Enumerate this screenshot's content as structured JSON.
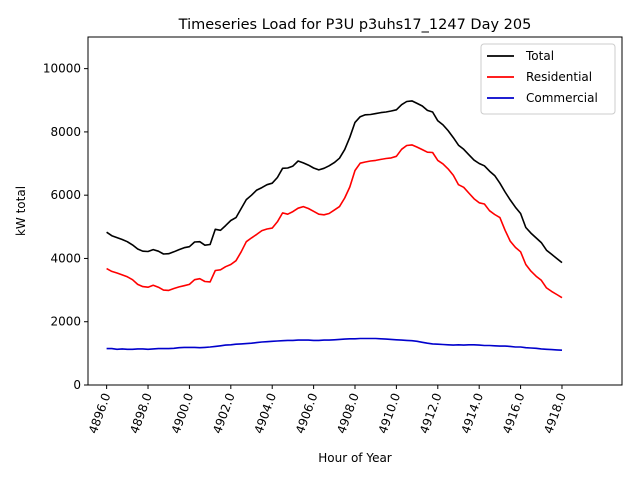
{
  "chart_data": {
    "type": "line",
    "title": "Timeseries Load for P3U p3uhs17_1247  Day 205",
    "xlabel": "Hour of Year",
    "ylabel": "kW total",
    "xlim": [
      4895.1,
      4920.9
    ],
    "ylim": [
      0,
      11000
    ],
    "x_start": 4896.0,
    "x_step": 0.25,
    "xticks": [
      4896,
      4898,
      4900,
      4902,
      4904,
      4906,
      4908,
      4910,
      4912,
      4914,
      4916,
      4918
    ],
    "xtick_labels": [
      "4896.0",
      "4898.0",
      "4900.0",
      "4902.0",
      "4904.0",
      "4906.0",
      "4908.0",
      "4910.0",
      "4912.0",
      "4914.0",
      "4916.0",
      "4918.0"
    ],
    "yticks": [
      0,
      2000,
      4000,
      6000,
      8000,
      10000
    ],
    "ytick_labels": [
      "0",
      "2000",
      "4000",
      "6000",
      "8000",
      "10000"
    ],
    "legend_position": "top-right",
    "series": [
      {
        "name": "Total",
        "color": "#000000",
        "values": [
          4830,
          4720,
          4660,
          4600,
          4530,
          4430,
          4300,
          4230,
          4220,
          4280,
          4230,
          4140,
          4150,
          4210,
          4280,
          4340,
          4370,
          4520,
          4530,
          4420,
          4440,
          4920,
          4890,
          5040,
          5200,
          5290,
          5580,
          5860,
          6000,
          6160,
          6240,
          6330,
          6380,
          6560,
          6850,
          6860,
          6920,
          7080,
          7020,
          6950,
          6860,
          6800,
          6850,
          6930,
          7030,
          7170,
          7440,
          7830,
          8300,
          8480,
          8540,
          8550,
          8580,
          8610,
          8630,
          8660,
          8700,
          8860,
          8960,
          8980,
          8900,
          8820,
          8680,
          8630,
          8350,
          8220,
          8040,
          7820,
          7580,
          7450,
          7280,
          7110,
          7000,
          6930,
          6760,
          6620,
          6380,
          6100,
          5850,
          5620,
          5420,
          4980,
          4800,
          4650,
          4500,
          4260,
          4130,
          4000,
          3870
        ]
      },
      {
        "name": "Residential",
        "color": "#ff0000",
        "values": [
          3680,
          3590,
          3540,
          3480,
          3420,
          3330,
          3180,
          3110,
          3090,
          3150,
          3090,
          3000,
          2990,
          3050,
          3100,
          3140,
          3180,
          3330,
          3360,
          3270,
          3260,
          3620,
          3640,
          3740,
          3810,
          3930,
          4210,
          4530,
          4650,
          4760,
          4880,
          4930,
          4960,
          5160,
          5440,
          5400,
          5480,
          5590,
          5640,
          5580,
          5490,
          5400,
          5380,
          5420,
          5530,
          5640,
          5910,
          6260,
          6780,
          7010,
          7050,
          7080,
          7100,
          7130,
          7160,
          7180,
          7230,
          7450,
          7570,
          7590,
          7520,
          7440,
          7360,
          7350,
          7100,
          6990,
          6830,
          6630,
          6330,
          6250,
          6070,
          5890,
          5760,
          5720,
          5510,
          5390,
          5290,
          4890,
          4550,
          4350,
          4210,
          3810,
          3600,
          3440,
          3310,
          3070,
          2960,
          2860,
          2760
        ]
      },
      {
        "name": "Commercial",
        "color": "#0000cc",
        "values": [
          1150,
          1150,
          1130,
          1140,
          1130,
          1130,
          1140,
          1140,
          1130,
          1140,
          1150,
          1150,
          1150,
          1160,
          1180,
          1190,
          1190,
          1190,
          1180,
          1190,
          1200,
          1220,
          1240,
          1260,
          1270,
          1290,
          1300,
          1310,
          1320,
          1340,
          1360,
          1370,
          1380,
          1390,
          1400,
          1410,
          1410,
          1420,
          1420,
          1420,
          1410,
          1410,
          1420,
          1420,
          1430,
          1440,
          1450,
          1460,
          1460,
          1470,
          1470,
          1470,
          1470,
          1460,
          1450,
          1440,
          1430,
          1420,
          1410,
          1400,
          1380,
          1350,
          1320,
          1300,
          1290,
          1280,
          1270,
          1260,
          1270,
          1260,
          1270,
          1270,
          1260,
          1250,
          1250,
          1240,
          1230,
          1230,
          1220,
          1200,
          1200,
          1180,
          1170,
          1160,
          1140,
          1130,
          1120,
          1110,
          1100
        ]
      }
    ]
  }
}
